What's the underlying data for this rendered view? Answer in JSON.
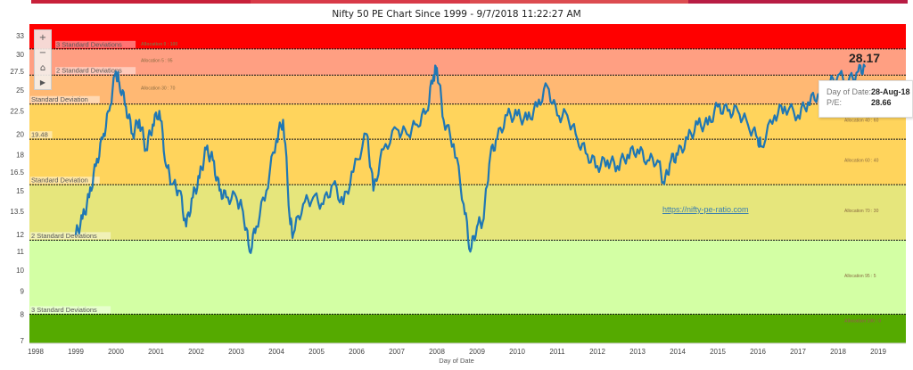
{
  "header": {
    "tab_colors": [
      "#c8203a",
      "#d83a48",
      "#dc4c50",
      "#b81c44"
    ]
  },
  "chart_data": {
    "type": "line",
    "title": "Nifty 50 PE Chart Since 1999 - 9/7/2018 11:22:27 AM",
    "xlabel": "Day of Date",
    "ylabel": "",
    "y_scale": "log",
    "ylim": [
      6.9,
      35
    ],
    "xlim": [
      "1998-01",
      "2019-06"
    ],
    "x_ticks": [
      "1998",
      "1999",
      "2000",
      "2001",
      "2002",
      "2003",
      "2004",
      "2005",
      "2006",
      "2007",
      "2008",
      "2009",
      "2010",
      "2011",
      "2012",
      "2013",
      "2014",
      "2015",
      "2016",
      "2017",
      "2018",
      "2019"
    ],
    "y_ticks": [
      7,
      8,
      9,
      10,
      11,
      12,
      13.5,
      15,
      16.5,
      18,
      20,
      22.5,
      25,
      27.5,
      30,
      33
    ],
    "line_color": "#1f77b4",
    "bands": [
      {
        "from": 30.85,
        "to": 35,
        "color": "#ff0000",
        "allocation": "Allocation 0 : 100",
        "line_label": "3 Standard Deviations"
      },
      {
        "from": 27.0,
        "to": 30.85,
        "color": "#ff9f82",
        "allocation": "Allocation 5 : 95",
        "line_label": "2 Standard Deviations"
      },
      {
        "from": 23.3,
        "to": 27.0,
        "color": "#ffb873",
        "allocation": "Allocation 30 : 70",
        "line_label": "Standard Deviation"
      },
      {
        "from": 19.48,
        "to": 23.3,
        "color": "#ffd45c",
        "allocation": "Allocation 40 : 60",
        "line_label": "19.48"
      },
      {
        "from": 15.46,
        "to": 19.48,
        "color": "#ffd45c",
        "allocation": "Allocation 60 : 40",
        "line_label": "Standard Deviation"
      },
      {
        "from": 11.66,
        "to": 15.46,
        "color": "#e6e67c",
        "allocation": "Allocation 70 : 30",
        "line_label": "2 Standard Deviations"
      },
      {
        "from": 8.0,
        "to": 11.66,
        "color": "#d3ffa4",
        "allocation": "Allocation 95 : 5",
        "line_label": "3 Standard Deviations"
      },
      {
        "from": 6.9,
        "to": 8.0,
        "color": "#55aa00",
        "allocation": "Allocation 100 : 0",
        "line_label": ""
      }
    ],
    "series": [
      {
        "points": [
          [
            "1999-01",
            12.0
          ],
          [
            "1999-03",
            13.0
          ],
          [
            "1999-05",
            14.5
          ],
          [
            "1999-07",
            17.0
          ],
          [
            "1999-09",
            19.5
          ],
          [
            "1999-11",
            22.5
          ],
          [
            "2000-01",
            27.5
          ],
          [
            "2000-02",
            26.0
          ],
          [
            "2000-04",
            23.0
          ],
          [
            "2000-06",
            20.0
          ],
          [
            "2000-08",
            21.5
          ],
          [
            "2000-10",
            18.5
          ],
          [
            "2000-12",
            21.0
          ],
          [
            "2001-02",
            22.5
          ],
          [
            "2001-04",
            17.0
          ],
          [
            "2001-06",
            15.5
          ],
          [
            "2001-08",
            15.0
          ],
          [
            "2001-10",
            12.5
          ],
          [
            "2001-12",
            14.5
          ],
          [
            "2002-02",
            16.0
          ],
          [
            "2002-04",
            18.5
          ],
          [
            "2002-06",
            17.5
          ],
          [
            "2002-08",
            15.0
          ],
          [
            "2002-10",
            14.5
          ],
          [
            "2003-01",
            14.5
          ],
          [
            "2003-03",
            13.5
          ],
          [
            "2003-05",
            11.0
          ],
          [
            "2003-07",
            12.5
          ],
          [
            "2003-10",
            15.0
          ],
          [
            "2004-01",
            19.5
          ],
          [
            "2004-03",
            21.5
          ],
          [
            "2004-05",
            13.0
          ],
          [
            "2004-06",
            12.0
          ],
          [
            "2004-09",
            14.0
          ],
          [
            "2004-12",
            14.5
          ],
          [
            "2005-03",
            14.0
          ],
          [
            "2005-06",
            15.5
          ],
          [
            "2005-09",
            14.0
          ],
          [
            "2005-12",
            16.5
          ],
          [
            "2006-04",
            20.0
          ],
          [
            "2006-06",
            15.0
          ],
          [
            "2006-09",
            18.5
          ],
          [
            "2007-01",
            20.5
          ],
          [
            "2007-04",
            20.0
          ],
          [
            "2007-07",
            21.0
          ],
          [
            "2007-10",
            22.5
          ],
          [
            "2007-12",
            27.0
          ],
          [
            "2008-01",
            28.0
          ],
          [
            "2008-03",
            21.5
          ],
          [
            "2008-06",
            19.0
          ],
          [
            "2008-09",
            14.0
          ],
          [
            "2008-11",
            11.0
          ],
          [
            "2009-01",
            12.5
          ],
          [
            "2009-03",
            13.0
          ],
          [
            "2009-05",
            18.0
          ],
          [
            "2009-07",
            19.5
          ],
          [
            "2009-10",
            22.0
          ],
          [
            "2010-01",
            22.0
          ],
          [
            "2010-04",
            21.5
          ],
          [
            "2010-07",
            23.0
          ],
          [
            "2010-10",
            25.5
          ],
          [
            "2011-01",
            22.0
          ],
          [
            "2011-04",
            22.0
          ],
          [
            "2011-07",
            19.5
          ],
          [
            "2011-10",
            18.0
          ],
          [
            "2012-01",
            17.0
          ],
          [
            "2012-04",
            17.5
          ],
          [
            "2012-07",
            17.0
          ],
          [
            "2012-10",
            18.0
          ],
          [
            "2013-01",
            18.5
          ],
          [
            "2013-04",
            17.5
          ],
          [
            "2013-07",
            17.5
          ],
          [
            "2013-09",
            15.5
          ],
          [
            "2013-11",
            17.5
          ],
          [
            "2014-01",
            18.0
          ],
          [
            "2014-04",
            19.5
          ],
          [
            "2014-07",
            21.0
          ],
          [
            "2014-10",
            21.0
          ],
          [
            "2015-01",
            23.0
          ],
          [
            "2015-04",
            22.5
          ],
          [
            "2015-07",
            22.5
          ],
          [
            "2015-10",
            21.0
          ],
          [
            "2016-01",
            19.5
          ],
          [
            "2016-02",
            18.8
          ],
          [
            "2016-06",
            22.0
          ],
          [
            "2016-09",
            23.0
          ],
          [
            "2017-01",
            22.0
          ],
          [
            "2017-04",
            23.5
          ],
          [
            "2017-07",
            24.5
          ],
          [
            "2017-10",
            25.5
          ],
          [
            "2018-01",
            27.0
          ],
          [
            "2018-04",
            26.0
          ],
          [
            "2018-07",
            27.5
          ],
          [
            "2018-09",
            28.2
          ]
        ]
      }
    ],
    "annotations": {
      "last_value": "28.17",
      "watermark_link": "https://nifty-pe-ratio.com"
    },
    "tooltip": {
      "date_label": "Day of Date:",
      "date_value": "28-Aug-18",
      "pe_label": "P/E:",
      "pe_value": "28.66"
    },
    "grid": false
  },
  "controls": {
    "zoom_in": "+",
    "zoom_out": "−",
    "home": "⌂",
    "play": "▶"
  }
}
